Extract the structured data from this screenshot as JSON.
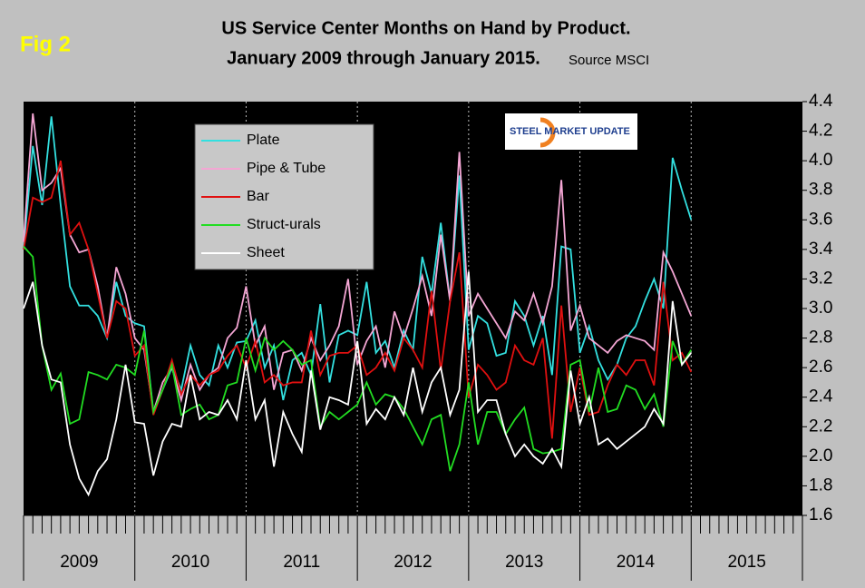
{
  "chart_data": {
    "type": "line",
    "title": "US Service Center Months on Hand by Product.",
    "subtitle": "January 2009 through January 2015.",
    "source": "Source MSCI",
    "figure_label": "Fig 2",
    "logo_text": "STEEL MARKET UPDATE",
    "x_axis_labels": [
      "2009",
      "2010",
      "2011",
      "2012",
      "2013",
      "2014",
      "2015"
    ],
    "ylim": [
      1.6,
      4.4
    ],
    "yticks": [
      1.6,
      1.8,
      {
        "value": 2,
        "label": "2.0"
      },
      2.2,
      2.4,
      2.6,
      2.8,
      {
        "value": 3,
        "label": "3.0"
      },
      3.2,
      3.4,
      3.6,
      3.8,
      {
        "value": 4,
        "label": "4.0"
      },
      4.2,
      4.4
    ],
    "xgrid": true,
    "series": [
      {
        "name": "Plate",
        "color": "#33e0e0",
        "values": [
          3.4,
          4.1,
          3.7,
          4.3,
          3.7,
          3.15,
          3.02,
          3.02,
          2.95,
          2.8,
          3.18,
          2.95,
          2.9,
          2.88,
          2.3,
          2.45,
          2.6,
          2.45,
          2.75,
          2.55,
          2.48,
          2.75,
          2.6,
          2.77,
          2.78,
          2.92,
          2.6,
          2.75,
          2.38,
          2.65,
          2.7,
          2.55,
          3.03,
          2.5,
          2.82,
          2.85,
          2.82,
          3.18,
          2.7,
          2.78,
          2.6,
          2.85,
          2.72,
          3.35,
          3.1,
          3.58,
          3.05,
          3.9,
          2.72,
          2.95,
          2.9,
          2.68,
          2.7,
          3.05,
          2.95,
          2.75,
          2.95,
          2.55,
          3.42,
          3.4,
          2.7,
          2.88,
          2.65,
          2.52,
          2.62,
          2.8,
          2.88,
          3.05,
          3.2,
          3.0,
          4.02,
          3.8,
          3.6
        ]
      },
      {
        "name": "Pipe & Tube",
        "color": "#f4a6d4",
        "values": [
          3.45,
          4.32,
          3.8,
          3.85,
          3.95,
          3.5,
          3.38,
          3.4,
          3.15,
          2.8,
          3.28,
          3.1,
          2.8,
          2.72,
          2.3,
          2.5,
          2.6,
          2.38,
          2.62,
          2.45,
          2.55,
          2.6,
          2.8,
          2.87,
          3.15,
          2.75,
          2.88,
          2.45,
          2.7,
          2.72,
          2.58,
          2.8,
          2.65,
          2.75,
          2.88,
          3.2,
          2.62,
          2.78,
          2.88,
          2.6,
          2.98,
          2.8,
          3.0,
          3.22,
          2.95,
          3.5,
          3.05,
          4.06,
          2.95,
          3.1,
          3.0,
          2.9,
          2.8,
          2.98,
          2.92,
          3.1,
          2.9,
          3.15,
          3.87,
          2.85,
          3.02,
          2.8,
          2.75,
          2.7,
          2.78,
          2.82,
          2.8,
          2.78,
          2.72,
          3.38,
          3.25,
          3.1,
          2.95
        ]
      },
      {
        "name": "Bar",
        "color": "#e01010",
        "values": [
          3.4,
          3.75,
          3.72,
          3.75,
          4.0,
          3.5,
          3.58,
          3.4,
          3.1,
          2.8,
          3.05,
          3.0,
          2.68,
          2.75,
          2.28,
          2.45,
          2.65,
          2.42,
          2.55,
          2.48,
          2.55,
          2.58,
          2.68,
          2.75,
          2.6,
          2.78,
          2.5,
          2.55,
          2.48,
          2.5,
          2.5,
          2.85,
          2.55,
          2.68,
          2.7,
          2.7,
          2.75,
          2.55,
          2.6,
          2.7,
          2.58,
          2.8,
          2.72,
          2.6,
          3.12,
          2.58,
          3.05,
          3.38,
          2.4,
          2.62,
          2.55,
          2.45,
          2.5,
          2.75,
          2.65,
          2.62,
          2.8,
          2.12,
          3.02,
          2.3,
          2.6,
          2.28,
          2.3,
          2.48,
          2.62,
          2.55,
          2.65,
          2.65,
          2.48,
          3.18,
          2.65,
          2.7,
          2.57
        ]
      },
      {
        "name": "Struct-urals",
        "color": "#22dd22",
        "values": [
          3.42,
          3.35,
          2.75,
          2.45,
          2.56,
          2.22,
          2.25,
          2.57,
          2.55,
          2.52,
          2.62,
          2.6,
          2.55,
          2.85,
          2.3,
          2.45,
          2.62,
          2.28,
          2.32,
          2.35,
          2.25,
          2.28,
          2.48,
          2.5,
          2.8,
          2.58,
          2.8,
          2.72,
          2.78,
          2.72,
          2.62,
          2.65,
          2.2,
          2.3,
          2.25,
          2.3,
          2.35,
          2.5,
          2.35,
          2.42,
          2.4,
          2.32,
          2.2,
          2.08,
          2.25,
          2.28,
          1.9,
          2.08,
          2.5,
          2.08,
          2.3,
          2.3,
          2.15,
          2.25,
          2.33,
          2.05,
          2.02,
          2.03,
          2.05,
          2.62,
          2.65,
          2.3,
          2.6,
          2.3,
          2.32,
          2.48,
          2.45,
          2.32,
          2.42,
          2.2,
          2.78,
          2.62,
          2.72
        ]
      },
      {
        "name": "Sheet",
        "color": "#ffffff",
        "values": [
          3.0,
          3.18,
          2.75,
          2.52,
          2.5,
          2.08,
          1.85,
          1.74,
          1.9,
          1.98,
          2.25,
          2.62,
          2.23,
          2.22,
          1.87,
          2.1,
          2.22,
          2.2,
          2.55,
          2.25,
          2.3,
          2.28,
          2.38,
          2.25,
          2.65,
          2.25,
          2.38,
          1.93,
          2.3,
          2.15,
          2.03,
          2.58,
          2.18,
          2.4,
          2.38,
          2.35,
          2.78,
          2.22,
          2.32,
          2.25,
          2.4,
          2.28,
          2.6,
          2.3,
          2.5,
          2.6,
          2.28,
          2.45,
          3.25,
          2.3,
          2.38,
          2.38,
          2.15,
          2.0,
          2.08,
          2.0,
          1.95,
          2.05,
          1.93,
          2.58,
          2.22,
          2.4,
          2.08,
          2.12,
          2.05,
          2.1,
          2.15,
          2.2,
          2.32,
          2.22,
          3.05,
          2.62,
          2.7
        ]
      }
    ]
  }
}
